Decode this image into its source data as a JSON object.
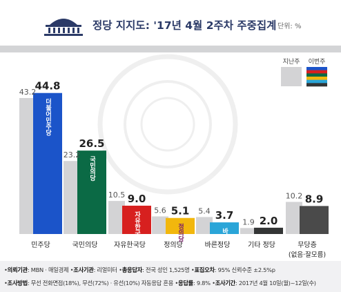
{
  "header": {
    "title": "정당 지지도: '17년 4월 2주차 주중집계",
    "unit": "단위: %"
  },
  "legend": {
    "previous": "지난주",
    "current": "이번주"
  },
  "chart_data": {
    "type": "bar",
    "title": "정당 지지도: '17년 4월 2주차 주중집계",
    "unit": "%",
    "categories": [
      "민주당",
      "국민의당",
      "자유한국당",
      "정의당",
      "바른정당",
      "기타 정당",
      "무당층"
    ],
    "category_sublabels": [
      "",
      "",
      "",
      "",
      "",
      "",
      "(없음·잘모름)"
    ],
    "series": [
      {
        "name": "지난주",
        "values": [
          43.2,
          23.2,
          10.5,
          5.6,
          5.4,
          1.9,
          10.2
        ]
      },
      {
        "name": "이번주",
        "values": [
          44.8,
          26.5,
          9.0,
          5.1,
          3.7,
          2.0,
          8.9
        ]
      }
    ],
    "value_labels_prev": [
      "43.2",
      "23.2",
      "10.5",
      "5.6",
      "5.4",
      "1.9",
      "10.2"
    ],
    "value_labels_curr": [
      "44.8",
      "26.5",
      "9.0",
      "5.1",
      "3.7",
      "2.0",
      "8.9"
    ],
    "current_colors": [
      "#1b54c9",
      "#0b6a45",
      "#d7201f",
      "#f2b70d",
      "#2aa5d8",
      "#333535",
      "#4a4a4a"
    ],
    "previous_color": "#d3d3d5",
    "bar_logos": [
      "더불어민주당",
      "국민의당",
      "자유한국당",
      "정의당",
      "바른정당",
      "",
      ""
    ],
    "ylim": [
      0,
      50
    ],
    "legend_position": "top-right",
    "grid": false
  },
  "footer": {
    "line1": [
      {
        "label": "의뢰기관",
        "value": ": MBN · 매일경제"
      },
      {
        "label": "조사기관",
        "value": ": 리얼미터"
      },
      {
        "label": "총응답자",
        "value": ": 전국 성인 1,525명"
      },
      {
        "label": "표집오차",
        "value": ": 95% 신뢰수준 ±2.5%p"
      }
    ],
    "line2": [
      {
        "label": "조사방법",
        "value": ": 무선 전화면접(18%), 무선(72%) · 유선(10%) 자동응답 혼용"
      },
      {
        "label": "응답률",
        "value": ": 9.8%"
      },
      {
        "label": "조사기간",
        "value": ": 2017년 4월 10일(월)~12일(수)"
      }
    ]
  }
}
